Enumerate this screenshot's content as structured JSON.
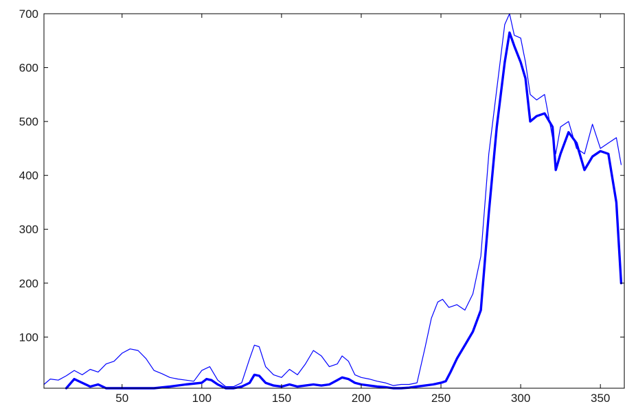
{
  "chart_data": {
    "type": "line",
    "title": "",
    "xlabel": "",
    "ylabel": "",
    "xlim": [
      1,
      365
    ],
    "ylim": [
      5,
      700
    ],
    "grid": false,
    "color": "#0000ff",
    "xticks": [
      50,
      100,
      150,
      200,
      250,
      300,
      350
    ],
    "xtick_labels": [
      "50",
      "100",
      "150",
      "200",
      "250",
      "300",
      "350"
    ],
    "yticks": [
      100,
      200,
      300,
      400,
      500,
      600,
      700
    ],
    "ytick_labels": [
      "100",
      "200",
      "300",
      "400",
      "500",
      "600",
      "700"
    ],
    "series": [
      {
        "style": "thin",
        "x": [
          1,
          5,
          10,
          15,
          20,
          25,
          30,
          35,
          40,
          45,
          50,
          55,
          60,
          65,
          70,
          75,
          80,
          85,
          90,
          95,
          100,
          105,
          110,
          115,
          120,
          125,
          130,
          133,
          136,
          140,
          145,
          150,
          155,
          160,
          165,
          170,
          175,
          180,
          185,
          188,
          192,
          196,
          200,
          205,
          210,
          215,
          220,
          225,
          230,
          235,
          240,
          244,
          248,
          251,
          255,
          260,
          265,
          270,
          275,
          280,
          285,
          290,
          293,
          296,
          300,
          303,
          306,
          310,
          315,
          320,
          322,
          325,
          330,
          335,
          340,
          345,
          350,
          355,
          360,
          363
        ],
        "y": [
          12,
          22,
          20,
          28,
          38,
          30,
          40,
          35,
          50,
          55,
          70,
          78,
          75,
          60,
          38,
          32,
          25,
          22,
          20,
          18,
          38,
          45,
          20,
          8,
          8,
          15,
          60,
          85,
          82,
          45,
          30,
          25,
          40,
          30,
          50,
          75,
          65,
          45,
          50,
          65,
          55,
          30,
          25,
          22,
          18,
          15,
          10,
          12,
          12,
          15,
          80,
          135,
          165,
          170,
          155,
          160,
          150,
          180,
          250,
          440,
          560,
          680,
          700,
          660,
          655,
          610,
          550,
          540,
          550,
          470,
          440,
          490,
          500,
          450,
          440,
          495,
          450,
          460,
          470,
          420
        ]
      },
      {
        "style": "thick",
        "x": [
          15,
          20,
          25,
          30,
          35,
          40,
          70,
          80,
          90,
          100,
          103,
          106,
          110,
          115,
          120,
          125,
          130,
          133,
          136,
          140,
          145,
          150,
          155,
          160,
          165,
          170,
          175,
          180,
          185,
          188,
          192,
          196,
          200,
          205,
          210,
          215,
          220,
          225,
          230,
          235,
          240,
          245,
          250,
          253,
          256,
          260,
          265,
          270,
          275,
          280,
          285,
          290,
          293,
          296,
          300,
          303,
          306,
          310,
          315,
          320,
          322,
          325,
          330,
          335,
          340,
          345,
          350,
          355,
          360,
          363
        ],
        "y": [
          5,
          22,
          15,
          8,
          12,
          5,
          5,
          8,
          12,
          15,
          22,
          20,
          12,
          5,
          5,
          8,
          15,
          30,
          28,
          15,
          10,
          8,
          12,
          8,
          10,
          12,
          10,
          12,
          20,
          25,
          22,
          15,
          12,
          10,
          8,
          7,
          5,
          5,
          6,
          8,
          10,
          12,
          15,
          18,
          35,
          60,
          85,
          110,
          150,
          330,
          490,
          610,
          665,
          640,
          610,
          580,
          500,
          510,
          515,
          490,
          410,
          440,
          480,
          460,
          410,
          435,
          445,
          440,
          350,
          200
        ]
      }
    ]
  }
}
